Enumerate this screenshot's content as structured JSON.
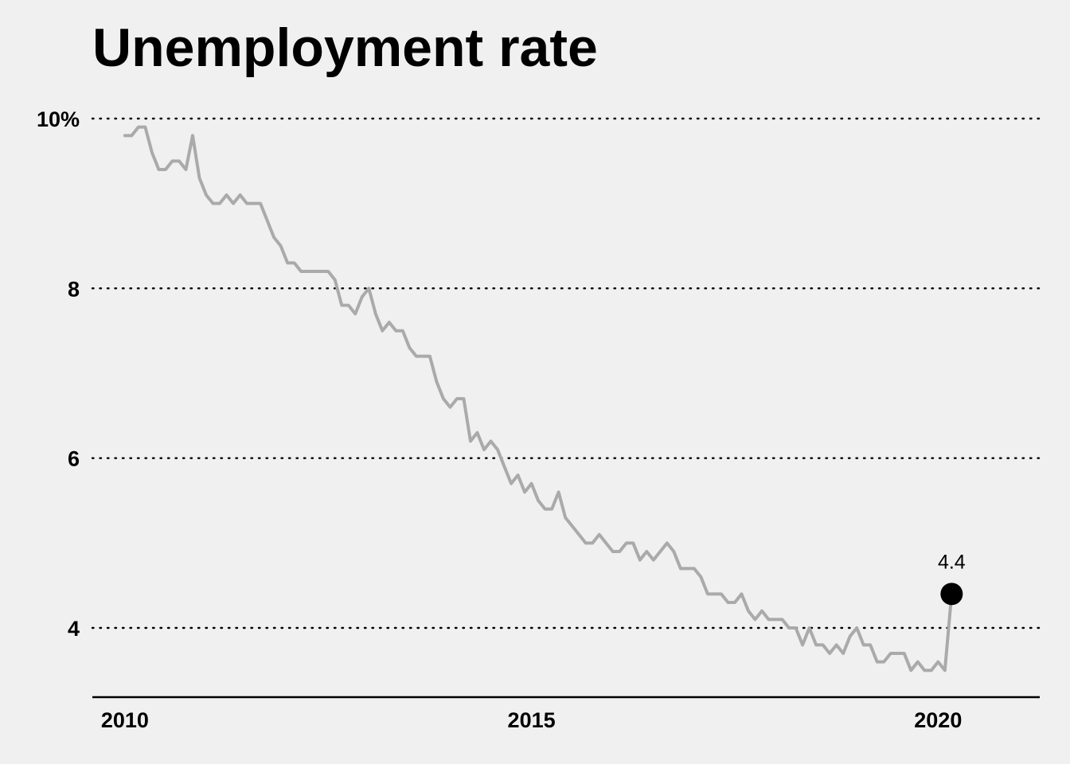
{
  "chart_data": {
    "type": "line",
    "title": "Unemployment rate",
    "xlabel": "",
    "ylabel": "",
    "x_ticks": [
      2010,
      2015,
      2020
    ],
    "x_tick_labels": [
      "2010",
      "2015",
      "2020"
    ],
    "y_ticks": [
      4,
      6,
      8,
      10
    ],
    "y_tick_labels": [
      "4",
      "6",
      "8",
      "10%"
    ],
    "xlim": [
      2009.6,
      2021.25
    ],
    "ylim": [
      3.2,
      10.4
    ],
    "grid": "horizontal dotted",
    "line_color": "#aaaaaa",
    "highlight_color": "#000000",
    "series": [
      {
        "x_start": "2010-01",
        "frequency": "monthly",
        "values": [
          9.8,
          9.8,
          9.9,
          9.9,
          9.6,
          9.4,
          9.4,
          9.5,
          9.5,
          9.4,
          9.8,
          9.3,
          9.1,
          9.0,
          9.0,
          9.1,
          9.0,
          9.1,
          9.0,
          9.0,
          9.0,
          8.8,
          8.6,
          8.5,
          8.3,
          8.3,
          8.2,
          8.2,
          8.2,
          8.2,
          8.2,
          8.1,
          7.8,
          7.8,
          7.7,
          7.9,
          8.0,
          7.7,
          7.5,
          7.6,
          7.5,
          7.5,
          7.3,
          7.2,
          7.2,
          7.2,
          6.9,
          6.7,
          6.6,
          6.7,
          6.7,
          6.2,
          6.3,
          6.1,
          6.2,
          6.1,
          5.9,
          5.7,
          5.8,
          5.6,
          5.7,
          5.5,
          5.4,
          5.4,
          5.6,
          5.3,
          5.2,
          5.1,
          5.0,
          5.0,
          5.1,
          5.0,
          4.9,
          4.9,
          5.0,
          5.0,
          4.8,
          4.9,
          4.8,
          4.9,
          5.0,
          4.9,
          4.7,
          4.7,
          4.7,
          4.6,
          4.4,
          4.4,
          4.4,
          4.3,
          4.3,
          4.4,
          4.2,
          4.1,
          4.2,
          4.1,
          4.1,
          4.1,
          4.0,
          4.0,
          3.8,
          4.0,
          3.8,
          3.8,
          3.7,
          3.8,
          3.7,
          3.9,
          4.0,
          3.8,
          3.8,
          3.6,
          3.6,
          3.7,
          3.7,
          3.7,
          3.5,
          3.6,
          3.5,
          3.5,
          3.6,
          3.5,
          4.4
        ]
      }
    ],
    "highlight": {
      "x": "2020-03",
      "value": 4.4,
      "label": "4.4"
    }
  }
}
